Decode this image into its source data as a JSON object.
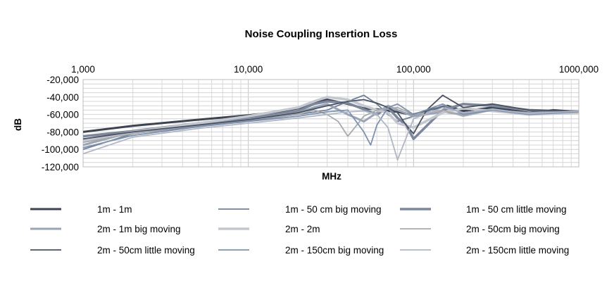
{
  "chart_data": {
    "type": "line",
    "title": "Noise Coupling Insertion Loss",
    "xlabel": "MHz",
    "ylabel": "dB",
    "xscale": "log",
    "xlim": [
      1000,
      1000000
    ],
    "ylim": [
      -120000,
      -20000
    ],
    "x_ticks": [
      1000,
      10000,
      100000,
      1000000
    ],
    "x_tick_labels": [
      "1,000",
      "10,000",
      "100,000",
      "1000,000"
    ],
    "y_ticks": [
      -20000,
      -40000,
      -60000,
      -80000,
      -100000,
      -120000
    ],
    "y_tick_labels": [
      "-20,000",
      "-40,000",
      "-60,000",
      "-80,000",
      "-100,000",
      "-120,000"
    ],
    "grid": true,
    "legend_position": "bottom",
    "series": [
      {
        "name": "1m - 1m",
        "color": "#3d4350",
        "x": [
          1000,
          2000,
          5000,
          10000,
          15000,
          20000,
          25000,
          30000,
          40000,
          50000,
          60000,
          70000,
          80000,
          90000,
          100000,
          130000,
          160000,
          200000,
          300000,
          500000,
          700000,
          1000000
        ],
        "y": [
          -80000,
          -73000,
          -66000,
          -61000,
          -57000,
          -53000,
          -47000,
          -43000,
          -48000,
          -53000,
          -54000,
          -56000,
          -57000,
          -59000,
          -60000,
          -54000,
          -50000,
          -56000,
          -52000,
          -58000,
          -55000,
          -57000
        ]
      },
      {
        "name": "1m - 50 cm big moving",
        "color": "#6f7f9a",
        "x": [
          1000,
          2000,
          5000,
          10000,
          20000,
          30000,
          40000,
          50000,
          60000,
          70000,
          80000,
          100000,
          150000,
          200000,
          300000,
          500000,
          1000000
        ],
        "y": [
          -100000,
          -82000,
          -73000,
          -67000,
          -60000,
          -55000,
          -45000,
          -38000,
          -48000,
          -60000,
          -68000,
          -62000,
          -50000,
          -58000,
          -55000,
          -58000,
          -56000
        ]
      },
      {
        "name": "1m - 50 cm little moving",
        "color": "#7d879b",
        "x": [
          1000,
          2000,
          5000,
          10000,
          20000,
          25000,
          30000,
          40000,
          50000,
          60000,
          70000,
          80000,
          90000,
          100000,
          150000,
          200000,
          300000,
          500000,
          1000000
        ],
        "y": [
          -85000,
          -79000,
          -70000,
          -64000,
          -56000,
          -48000,
          -45000,
          -47000,
          -54000,
          -60000,
          -52000,
          -64000,
          -72000,
          -88000,
          -55000,
          -48000,
          -50000,
          -55000,
          -57000
        ]
      },
      {
        "name": "2m - 1m big moving",
        "color": "#9aa4b6",
        "x": [
          1000,
          2000,
          5000,
          10000,
          20000,
          25000,
          30000,
          40000,
          50000,
          60000,
          70000,
          80000,
          100000,
          150000,
          200000,
          300000,
          500000,
          1000000
        ],
        "y": [
          -95000,
          -80000,
          -72000,
          -66000,
          -58000,
          -52000,
          -48000,
          -60000,
          -68000,
          -58000,
          -50000,
          -55000,
          -62000,
          -57000,
          -60000,
          -54000,
          -60000,
          -58000
        ]
      },
      {
        "name": "2m - 2m",
        "color": "#c3c7cf",
        "x": [
          1000,
          2000,
          5000,
          10000,
          20000,
          25000,
          30000,
          40000,
          50000,
          60000,
          70000,
          80000,
          100000,
          150000,
          200000,
          300000,
          500000,
          1000000
        ],
        "y": [
          -90000,
          -80000,
          -70000,
          -62000,
          -52000,
          -45000,
          -40000,
          -43000,
          -50000,
          -55000,
          -58000,
          -70000,
          -75000,
          -58000,
          -53000,
          -56000,
          -60000,
          -58000
        ]
      },
      {
        "name": "2m - 50cm big moving",
        "color": "#a9aaae",
        "x": [
          1000,
          2000,
          5000,
          10000,
          20000,
          25000,
          30000,
          35000,
          40000,
          50000,
          60000,
          80000,
          100000,
          150000,
          200000,
          300000,
          500000,
          1000000
        ],
        "y": [
          -92000,
          -82000,
          -72000,
          -66000,
          -60000,
          -55000,
          -60000,
          -68000,
          -85000,
          -62000,
          -55000,
          -52000,
          -60000,
          -55000,
          -62000,
          -55000,
          -58000,
          -57000
        ]
      },
      {
        "name": "2m - 50cm little moving",
        "color": "#4a5163",
        "x": [
          1000,
          2000,
          5000,
          10000,
          20000,
          30000,
          40000,
          50000,
          60000,
          70000,
          80000,
          90000,
          100000,
          120000,
          150000,
          200000,
          300000,
          500000,
          1000000
        ],
        "y": [
          -88000,
          -80000,
          -72000,
          -66000,
          -58000,
          -50000,
          -45000,
          -43000,
          -47000,
          -52000,
          -58000,
          -72000,
          -82000,
          -55000,
          -38000,
          -52000,
          -48000,
          -55000,
          -56000
        ]
      },
      {
        "name": "2m - 150cm big moving",
        "color": "#7e92ad",
        "x": [
          1000,
          2000,
          5000,
          10000,
          20000,
          30000,
          40000,
          50000,
          55000,
          60000,
          70000,
          80000,
          100000,
          150000,
          200000,
          300000,
          500000,
          1000000
        ],
        "y": [
          -98000,
          -84000,
          -74000,
          -68000,
          -62000,
          -57000,
          -55000,
          -80000,
          -95000,
          -72000,
          -52000,
          -48000,
          -60000,
          -48000,
          -60000,
          -55000,
          -60000,
          -57000
        ]
      },
      {
        "name": "2m - 150cm little moving",
        "color": "#b0b6c5",
        "x": [
          1000,
          2000,
          5000,
          10000,
          20000,
          30000,
          40000,
          50000,
          60000,
          70000,
          80000,
          100000,
          150000,
          200000,
          300000,
          500000,
          1000000
        ],
        "y": [
          -105000,
          -86000,
          -76000,
          -70000,
          -64000,
          -60000,
          -57000,
          -56000,
          -60000,
          -75000,
          -112000,
          -65000,
          -52000,
          -58000,
          -54000,
          -59000,
          -56000
        ]
      }
    ]
  }
}
